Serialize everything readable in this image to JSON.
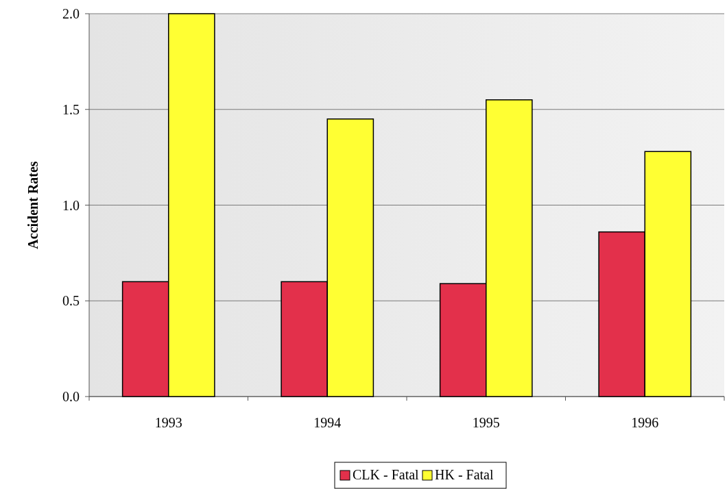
{
  "chart_data": {
    "type": "bar",
    "ylabel": "Accident Rates",
    "categories": [
      "1993",
      "1994",
      "1995",
      "1996"
    ],
    "series": [
      {
        "name": "CLK - Fatal",
        "color": "#e3304b",
        "values": [
          0.6,
          0.6,
          0.59,
          0.86
        ]
      },
      {
        "name": "HK - Fatal",
        "color": "#ffff33",
        "values": [
          2.0,
          1.45,
          1.55,
          1.28
        ]
      }
    ],
    "ylim": [
      0,
      2.0
    ],
    "yticks": [
      {
        "value": 0,
        "label": "0.0"
      },
      {
        "value": 0.5,
        "label": "0.5"
      },
      {
        "value": 1,
        "label": "1.0"
      },
      {
        "value": 1.5,
        "label": "1.5"
      },
      {
        "value": 2,
        "label": "2.0"
      }
    ],
    "grid": "y",
    "legend": "bottom"
  }
}
